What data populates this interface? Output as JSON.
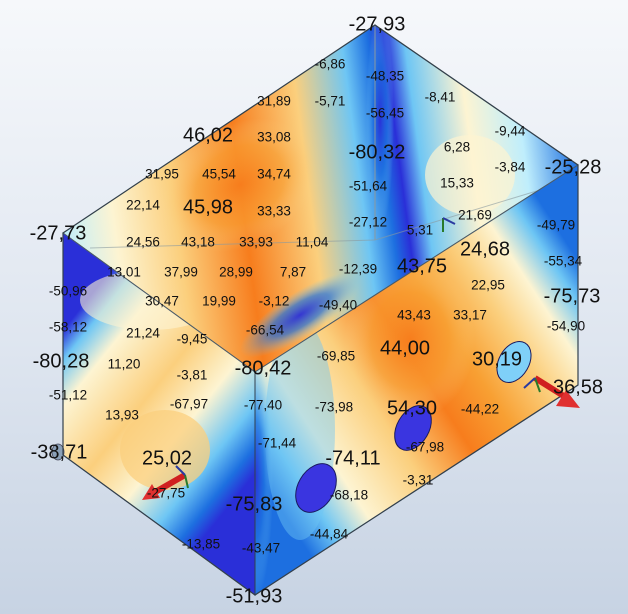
{
  "colors": {
    "deep_blue": "#2a2fd8",
    "blue": "#1d6fe0",
    "light_blue": "#6ec6f4",
    "pale_cyan": "#bfeefc",
    "cream": "#fdf4d2",
    "light_orange": "#fbcf7d",
    "orange": "#f8a033",
    "deep_orange": "#f77d1d",
    "edge": "#2a3a4a"
  },
  "labels_small": [
    "-6,86",
    "-48,35",
    "-8,41",
    "31,89",
    "-5,71",
    "-56,45",
    "-9,44",
    "33,08",
    "6,28",
    "-3,84",
    "31,95",
    "45,54",
    "34,74",
    "-51,64",
    "15,33",
    "22,14",
    "33,33",
    "21,69",
    "-49,79",
    "-27,12",
    "5,31",
    "24,56",
    "43,18",
    "33,93",
    "11,04",
    "-55,34",
    "13,01",
    "37,99",
    "28,99",
    "7,87",
    "-12,39",
    "22,95",
    "-50,96",
    "30,47",
    "19,99",
    "-3,12",
    "-49,40",
    "43,43",
    "33,17",
    "-58,12",
    "21,24",
    "-9,45",
    "-66,54",
    "-54,90",
    "-69,85",
    "11,20",
    "-3,81",
    "-51,12",
    "-67,97",
    "-77,40",
    "-73,98",
    "-44,22",
    "13,93",
    "-71,44",
    "-67,98",
    "-27,75",
    "-68,18",
    "-3,31",
    "-44,84",
    "-13,85",
    "-43,47"
  ],
  "labels_large": [
    "-27,93",
    "-25,28",
    "46,02",
    "-80,32",
    "45,98",
    "24,68",
    "-27,73",
    "43,75",
    "-75,73",
    "44,00",
    "-80,28",
    "30,19",
    "-80,42",
    "36,58",
    "54,30",
    "-38,71",
    "25,02",
    "-74,11",
    "-75,83",
    "-51,93"
  ]
}
